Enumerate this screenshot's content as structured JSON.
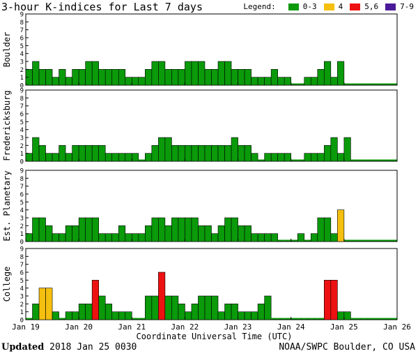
{
  "header": {
    "title": "3-hour K-indices for Last 7 days",
    "legend_label": "Legend:",
    "legend": [
      {
        "label": "0-3",
        "color": "#0a9a0a"
      },
      {
        "label": "4",
        "color": "#f5bf0f"
      },
      {
        "label": "5,6",
        "color": "#ee1111"
      },
      {
        "label": "7-9",
        "color": "#4b1a9a"
      }
    ]
  },
  "footer": {
    "updated_label": "Updated",
    "updated_value": "2018 Jan 25 0030",
    "credit": "NOAA/SWPC Boulder, CO USA"
  },
  "chart_data": {
    "type": "bar",
    "xlabel": "Coordinate Universal Time (UTC)",
    "x_ticks": [
      "Jan 19",
      "Jan 20",
      "Jan 21",
      "Jan 22",
      "Jan 23",
      "Jan 24",
      "Jan 25",
      "Jan 26"
    ],
    "ylim": [
      0,
      9
    ],
    "y_ticks": [
      "0",
      "1",
      "2",
      "3",
      "4",
      "5",
      "6",
      "7",
      "8",
      "9"
    ],
    "bar_interval": "3-hour",
    "panels": [
      {
        "name": "Boulder",
        "values": [
          2,
          3,
          2,
          2,
          1,
          2,
          1,
          2,
          2,
          3,
          3,
          2,
          2,
          2,
          2,
          1,
          1,
          1,
          2,
          3,
          3,
          2,
          2,
          2,
          3,
          3,
          3,
          2,
          2,
          3,
          3,
          2,
          2,
          2,
          1,
          1,
          1,
          2,
          1,
          1,
          0,
          0,
          1,
          1,
          2,
          3,
          1,
          3,
          0,
          0,
          0,
          0,
          0,
          0,
          0,
          0
        ]
      },
      {
        "name": "Fredericksburg",
        "values": [
          1,
          3,
          2,
          1,
          1,
          2,
          1,
          2,
          2,
          2,
          2,
          2,
          1,
          1,
          1,
          1,
          1,
          0,
          1,
          2,
          3,
          3,
          2,
          2,
          2,
          2,
          2,
          2,
          2,
          2,
          2,
          3,
          2,
          2,
          1,
          0,
          1,
          1,
          1,
          1,
          0,
          0,
          1,
          1,
          1,
          2,
          3,
          1,
          3,
          0,
          0,
          0,
          0,
          0,
          0,
          0
        ]
      },
      {
        "name": "Est. Planetary",
        "values": [
          1,
          3,
          3,
          2,
          1,
          1,
          2,
          2,
          3,
          3,
          3,
          1,
          1,
          1,
          2,
          1,
          1,
          1,
          2,
          3,
          3,
          2,
          3,
          3,
          3,
          3,
          2,
          2,
          1,
          2,
          3,
          3,
          2,
          2,
          1,
          1,
          1,
          1,
          0,
          0,
          0,
          1,
          0,
          1,
          3,
          3,
          1,
          4,
          0,
          0,
          0,
          0,
          0,
          0,
          0,
          0
        ]
      },
      {
        "name": "College",
        "values": [
          0,
          2,
          4,
          4,
          1,
          0,
          1,
          1,
          2,
          2,
          5,
          3,
          2,
          1,
          1,
          1,
          0,
          0,
          3,
          3,
          6,
          3,
          3,
          2,
          1,
          2,
          3,
          3,
          3,
          1,
          2,
          2,
          1,
          1,
          1,
          2,
          3,
          0,
          0,
          0,
          0,
          0,
          0,
          0,
          0,
          5,
          5,
          1,
          1,
          0,
          0,
          0,
          0,
          0,
          0,
          0
        ]
      }
    ]
  }
}
